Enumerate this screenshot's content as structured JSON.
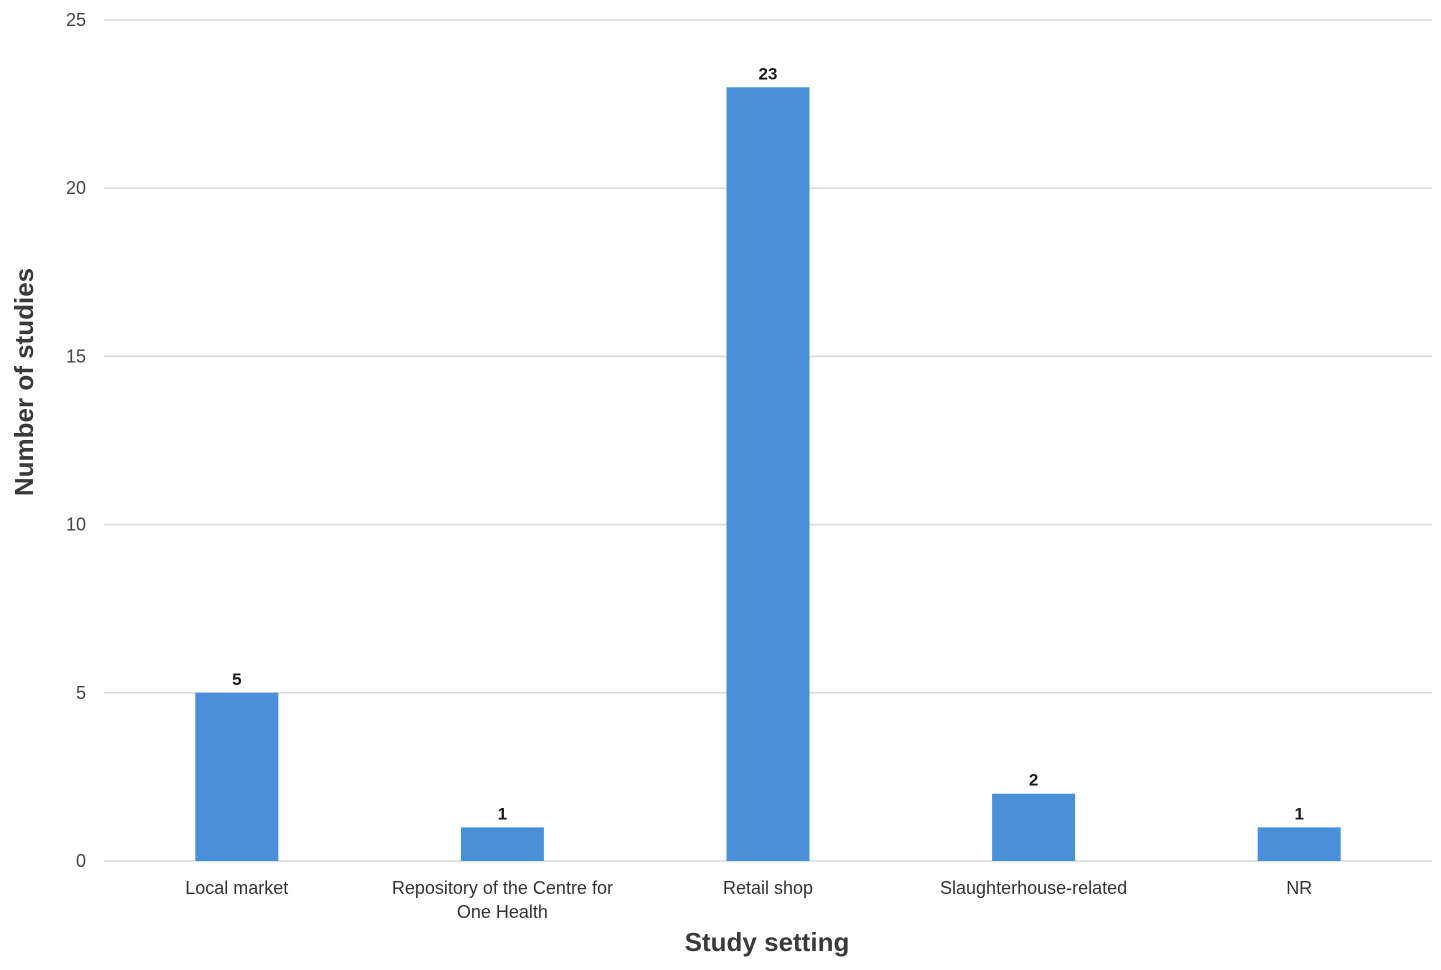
{
  "chart_data": {
    "type": "bar",
    "title": "",
    "xlabel": "Study setting",
    "ylabel": "Number of studies",
    "categories": [
      [
        "Local market"
      ],
      [
        "Repository of the Centre for",
        "One Health"
      ],
      [
        "Retail shop"
      ],
      [
        "Slaughterhouse-related"
      ],
      [
        "NR"
      ]
    ],
    "values": [
      5,
      1,
      23,
      2,
      1
    ],
    "ylim": [
      0,
      25
    ],
    "yticks": [
      0,
      5,
      10,
      15,
      20,
      25
    ],
    "grid": true,
    "legend": "none",
    "bar_color": "#4a90d9"
  }
}
